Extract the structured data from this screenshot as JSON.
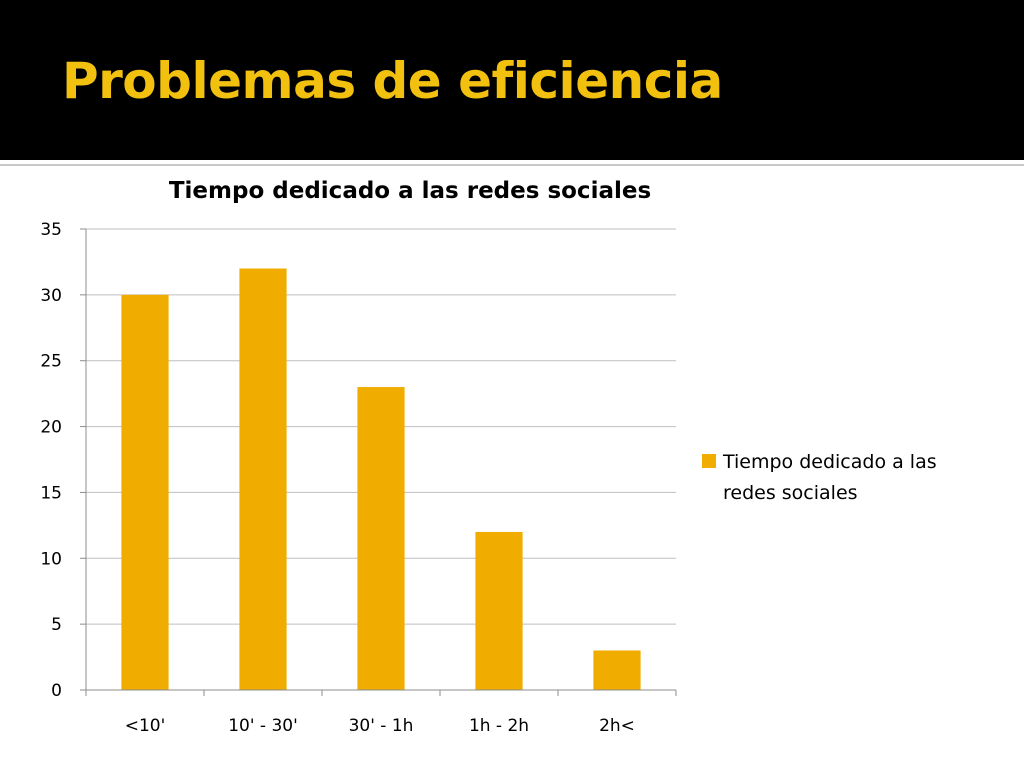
{
  "slide": {
    "title": "Problemas de eficiencia",
    "header_bg": "#000000",
    "title_color": "#f2c10f"
  },
  "chart_data": {
    "type": "bar",
    "title": "Tiempo dedicado a las redes sociales",
    "categories": [
      "<10'",
      "10' - 30'",
      "30' - 1h",
      "1h - 2h",
      "2h<"
    ],
    "series": [
      {
        "name": "Tiempo dedicado a las redes sociales",
        "values": [
          30,
          32,
          23,
          12,
          3
        ],
        "color": "#f0ad00"
      }
    ],
    "xlabel": "",
    "ylabel": "",
    "ylim": [
      0,
      35
    ],
    "yticks": [
      0,
      5,
      10,
      15,
      20,
      25,
      30,
      35
    ],
    "grid": true,
    "legend_position": "right",
    "legend_lines": [
      "Tiempo dedicado a las",
      "redes sociales"
    ]
  }
}
